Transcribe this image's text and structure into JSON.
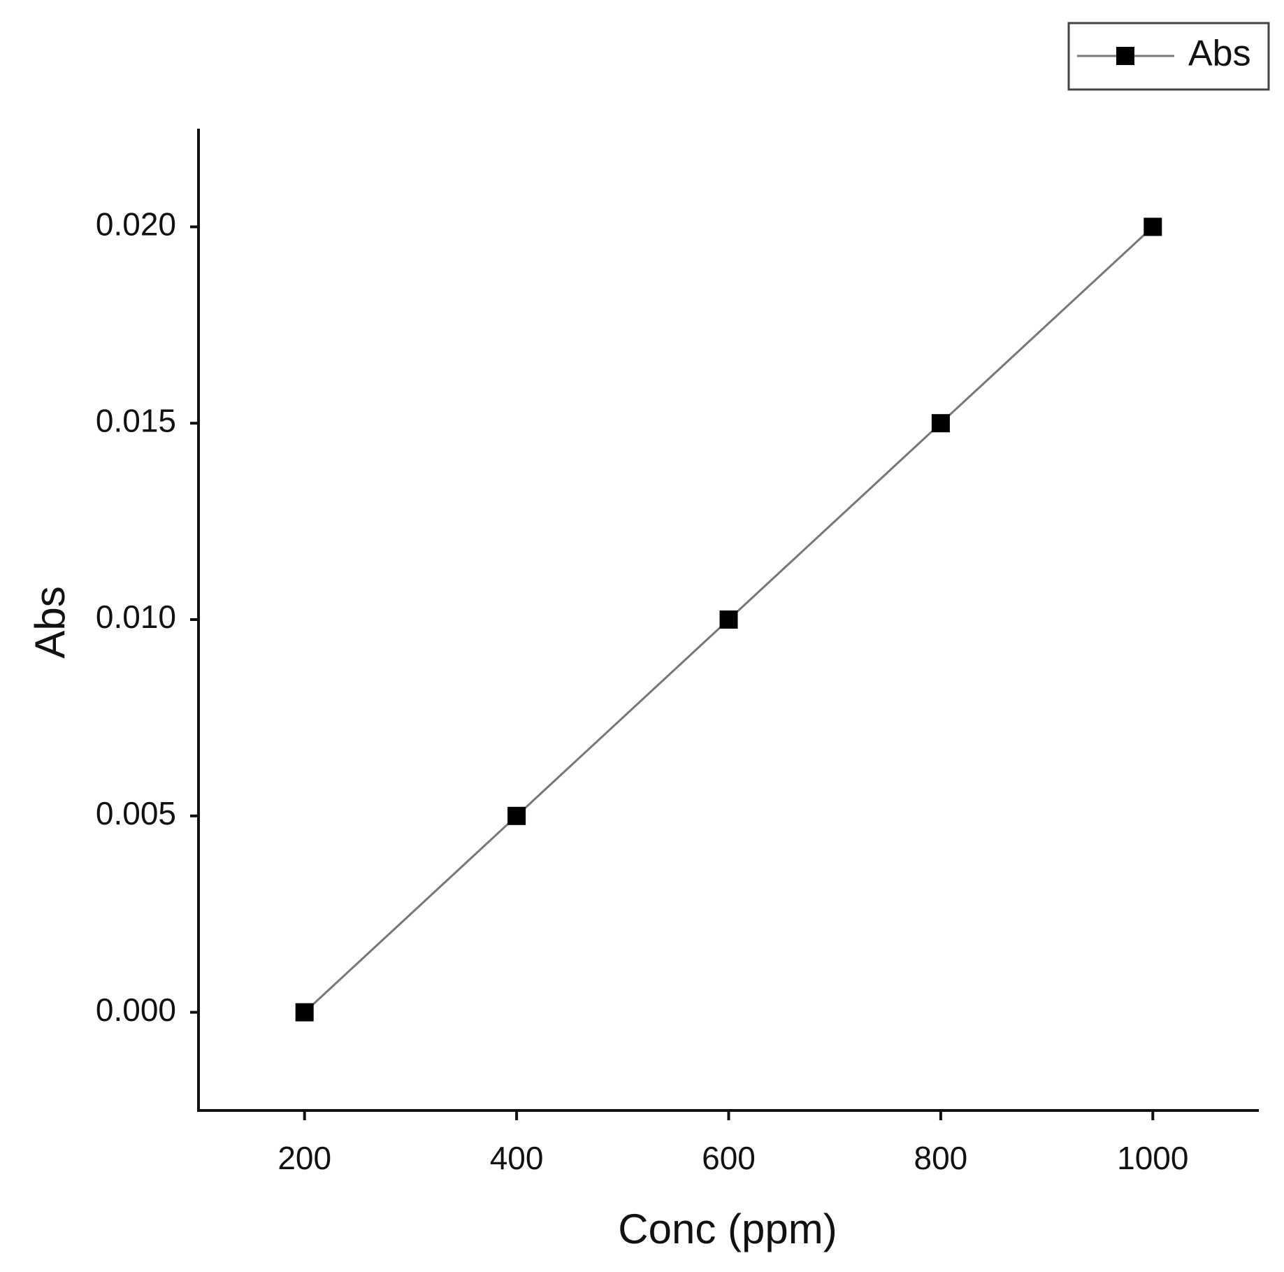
{
  "chart_data": {
    "type": "line",
    "x_label": "Conc (ppm)",
    "y_label": "Abs",
    "x": [
      200,
      400,
      600,
      800,
      1000
    ],
    "series": [
      {
        "name": "Abs",
        "color": "#000000",
        "values": [
          0.0,
          0.005,
          0.01,
          0.015,
          0.02
        ]
      }
    ],
    "xlim": [
      100,
      1100
    ],
    "xticks": [
      200,
      400,
      600,
      800,
      1000
    ],
    "ylim": [
      -0.0025,
      0.0225
    ],
    "yticks": [
      {
        "value": 0,
        "label": "0.000"
      },
      {
        "value": 0.005,
        "label": "0.005"
      },
      {
        "value": 0.01,
        "label": "0.010"
      },
      {
        "value": 0.015,
        "label": "0.015"
      },
      {
        "value": 0.02,
        "label": "0.020"
      }
    ],
    "grid": false,
    "legend": "top-right"
  }
}
